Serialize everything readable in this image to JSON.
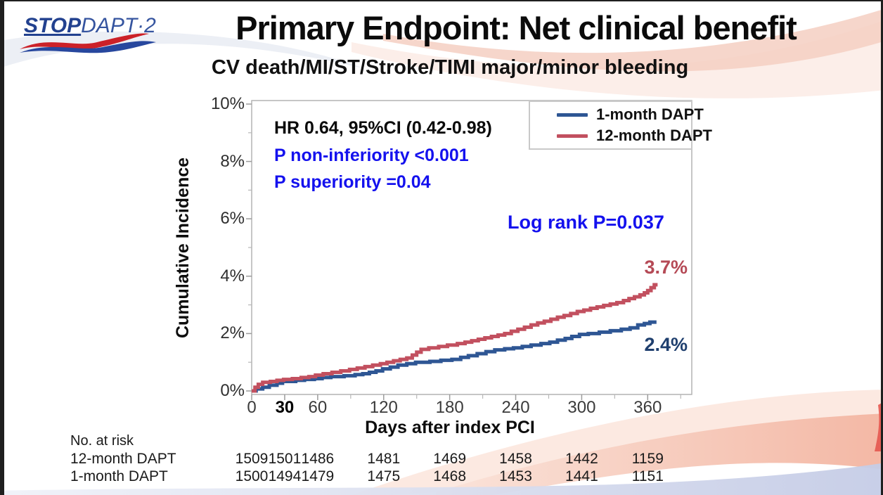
{
  "logo": {
    "stop": "STOP",
    "dapt": "DAPT·2"
  },
  "header": {
    "title": "Primary Endpoint: Net clinical benefit",
    "subtitle": "CV death/MI/ST/Stroke/TIMI major/minor bleeding"
  },
  "annotations": {
    "hr": "HR 0.64, 95%CI (0.42-0.98)",
    "p_noninferiority": "P non-inferiority <0.001",
    "p_superiority": "P superiority =0.04",
    "logrank": "Log rank P=0.037",
    "end_label_12m": "3.7%",
    "end_label_1m": "2.4%"
  },
  "colors": {
    "blue_line": "#2e5694",
    "red_line": "#c2505f",
    "blue_end_label": "#1f3f6e",
    "red_end_label": "#b54a56",
    "stat_blue": "#1411ee",
    "axis_border": "#b3b3b3"
  },
  "chart_data": {
    "type": "line",
    "step": true,
    "title": "Primary Endpoint: Net clinical benefit",
    "xlabel": "Days after index PCI",
    "ylabel": "Cumulative Incidence",
    "xlim": [
      0,
      401
    ],
    "ylim": [
      0,
      10
    ],
    "grid": false,
    "legend_position": "top-right-inside",
    "x_ticks_major": [
      0,
      30,
      60,
      120,
      180,
      240,
      300,
      360
    ],
    "x_ticks_minor": [
      90,
      150,
      210,
      270,
      330,
      390
    ],
    "emphasized_x_tick": 30,
    "y_ticks_major": [
      0,
      2,
      4,
      6,
      8,
      10
    ],
    "y_ticks_minor": [
      1,
      3,
      5,
      7,
      9
    ],
    "y_tick_suffix": "%",
    "series": [
      {
        "name": "1-month DAPT",
        "color": "#2e5694",
        "final_value_label": "2.4%",
        "points": [
          [
            0,
            0
          ],
          [
            4,
            0.07
          ],
          [
            10,
            0.13
          ],
          [
            16,
            0.2
          ],
          [
            23,
            0.27
          ],
          [
            28,
            0.33
          ],
          [
            40,
            0.37
          ],
          [
            48,
            0.4
          ],
          [
            57,
            0.43
          ],
          [
            64,
            0.47
          ],
          [
            72,
            0.5
          ],
          [
            84,
            0.53
          ],
          [
            94,
            0.57
          ],
          [
            101,
            0.6
          ],
          [
            107,
            0.65
          ],
          [
            113,
            0.7
          ],
          [
            119,
            0.77
          ],
          [
            126,
            0.83
          ],
          [
            133,
            0.9
          ],
          [
            141,
            0.95
          ],
          [
            149,
            1.0
          ],
          [
            162,
            1.03
          ],
          [
            172,
            1.07
          ],
          [
            182,
            1.1
          ],
          [
            190,
            1.17
          ],
          [
            197,
            1.23
          ],
          [
            205,
            1.3
          ],
          [
            213,
            1.37
          ],
          [
            221,
            1.43
          ],
          [
            230,
            1.47
          ],
          [
            238,
            1.5
          ],
          [
            246,
            1.55
          ],
          [
            254,
            1.6
          ],
          [
            263,
            1.65
          ],
          [
            271,
            1.7
          ],
          [
            278,
            1.77
          ],
          [
            285,
            1.83
          ],
          [
            291,
            1.9
          ],
          [
            298,
            1.97
          ],
          [
            306,
            2.0
          ],
          [
            316,
            2.05
          ],
          [
            326,
            2.1
          ],
          [
            336,
            2.15
          ],
          [
            344,
            2.2
          ],
          [
            351,
            2.3
          ],
          [
            357,
            2.35
          ],
          [
            362,
            2.4
          ],
          [
            368,
            2.4
          ]
        ]
      },
      {
        "name": "12-month DAPT",
        "color": "#c2505f",
        "final_value_label": "3.7%",
        "points": [
          [
            0,
            0
          ],
          [
            3,
            0.13
          ],
          [
            6,
            0.23
          ],
          [
            10,
            0.3
          ],
          [
            17,
            0.33
          ],
          [
            23,
            0.37
          ],
          [
            29,
            0.4
          ],
          [
            37,
            0.43
          ],
          [
            45,
            0.47
          ],
          [
            52,
            0.5
          ],
          [
            58,
            0.55
          ],
          [
            65,
            0.6
          ],
          [
            73,
            0.65
          ],
          [
            81,
            0.7
          ],
          [
            89,
            0.75
          ],
          [
            96,
            0.8
          ],
          [
            103,
            0.85
          ],
          [
            110,
            0.9
          ],
          [
            117,
            0.95
          ],
          [
            123,
            1.0
          ],
          [
            129,
            1.05
          ],
          [
            135,
            1.1
          ],
          [
            141,
            1.15
          ],
          [
            146,
            1.25
          ],
          [
            150,
            1.35
          ],
          [
            154,
            1.45
          ],
          [
            161,
            1.5
          ],
          [
            170,
            1.55
          ],
          [
            178,
            1.6
          ],
          [
            187,
            1.65
          ],
          [
            194,
            1.7
          ],
          [
            200,
            1.75
          ],
          [
            206,
            1.8
          ],
          [
            212,
            1.85
          ],
          [
            218,
            1.9
          ],
          [
            224,
            1.95
          ],
          [
            230,
            2.0
          ],
          [
            236,
            2.08
          ],
          [
            242,
            2.15
          ],
          [
            248,
            2.22
          ],
          [
            254,
            2.3
          ],
          [
            260,
            2.37
          ],
          [
            266,
            2.43
          ],
          [
            272,
            2.5
          ],
          [
            278,
            2.57
          ],
          [
            284,
            2.63
          ],
          [
            290,
            2.7
          ],
          [
            296,
            2.77
          ],
          [
            302,
            2.82
          ],
          [
            308,
            2.88
          ],
          [
            314,
            2.93
          ],
          [
            320,
            2.98
          ],
          [
            326,
            3.03
          ],
          [
            332,
            3.08
          ],
          [
            338,
            3.15
          ],
          [
            343,
            3.22
          ],
          [
            348,
            3.28
          ],
          [
            353,
            3.35
          ],
          [
            357,
            3.42
          ],
          [
            360,
            3.5
          ],
          [
            363,
            3.6
          ],
          [
            366,
            3.7
          ],
          [
            369,
            3.7
          ]
        ]
      }
    ]
  },
  "risk_table": {
    "caption": "No. at risk",
    "days": [
      0,
      30,
      60,
      120,
      180,
      240,
      300,
      360
    ],
    "rows": [
      {
        "label": "12-month DAPT",
        "values": [
          "1509",
          "1501",
          "1486",
          "1481",
          "1469",
          "1458",
          "1442",
          "1159"
        ]
      },
      {
        "label": "1-month DAPT",
        "values": [
          "1500",
          "1494",
          "1479",
          "1475",
          "1468",
          "1453",
          "1441",
          "1151"
        ]
      }
    ]
  }
}
